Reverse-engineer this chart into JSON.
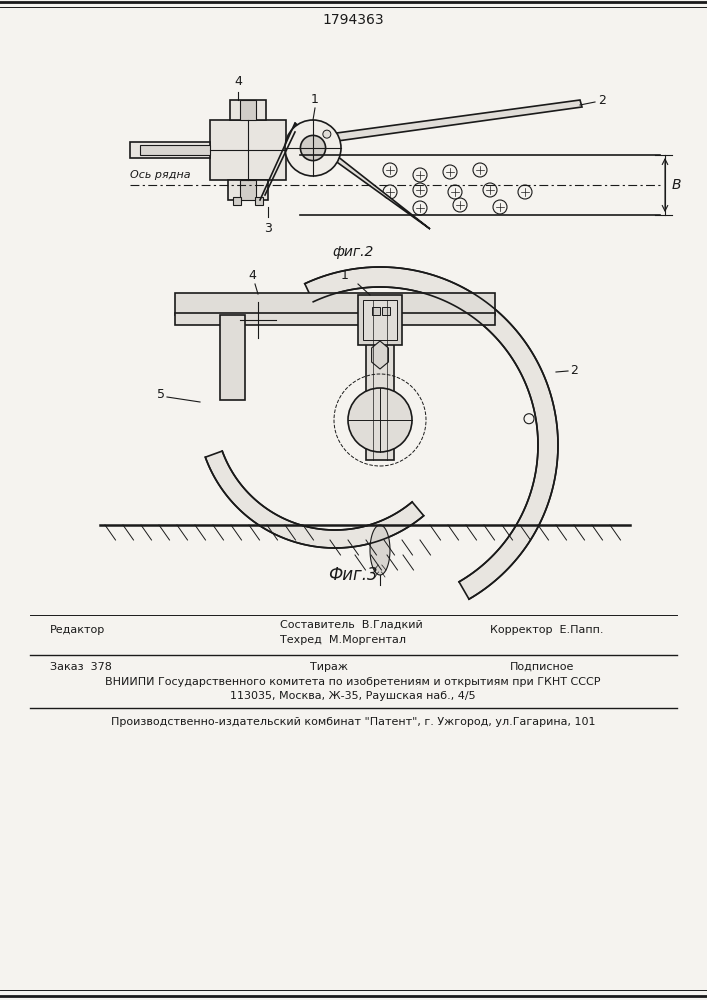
{
  "patent_number": "1794363",
  "fig2_label": "фиг.2",
  "fig3_label": "Фиг.3",
  "bg_color": "#f5f3ef",
  "line_color": "#1a1a1a",
  "editor_line": "Редактор",
  "compiler_line": "Составитель  В.Гладкий",
  "techred_line": "Техред  М.Моргентал",
  "corrector_line": "Корректор  Е.Папп.",
  "order_line": "Заказ  378",
  "tirazh_line": "Тираж",
  "podpisnoe_line": "Подписное",
  "vniiipi_line": "ВНИИПИ Государственного комитета по изобретениям и открытиям при ГКНТ СССР",
  "address_line": "113035, Москва, Ж-35, Раушская наб., 4/5",
  "factory_line": "Производственно-издательский комбинат \"Патент\", г. Ужгород, ул.Гагарина, 101",
  "axis_ryadna_label": "Ось рядна",
  "label_b": "B"
}
